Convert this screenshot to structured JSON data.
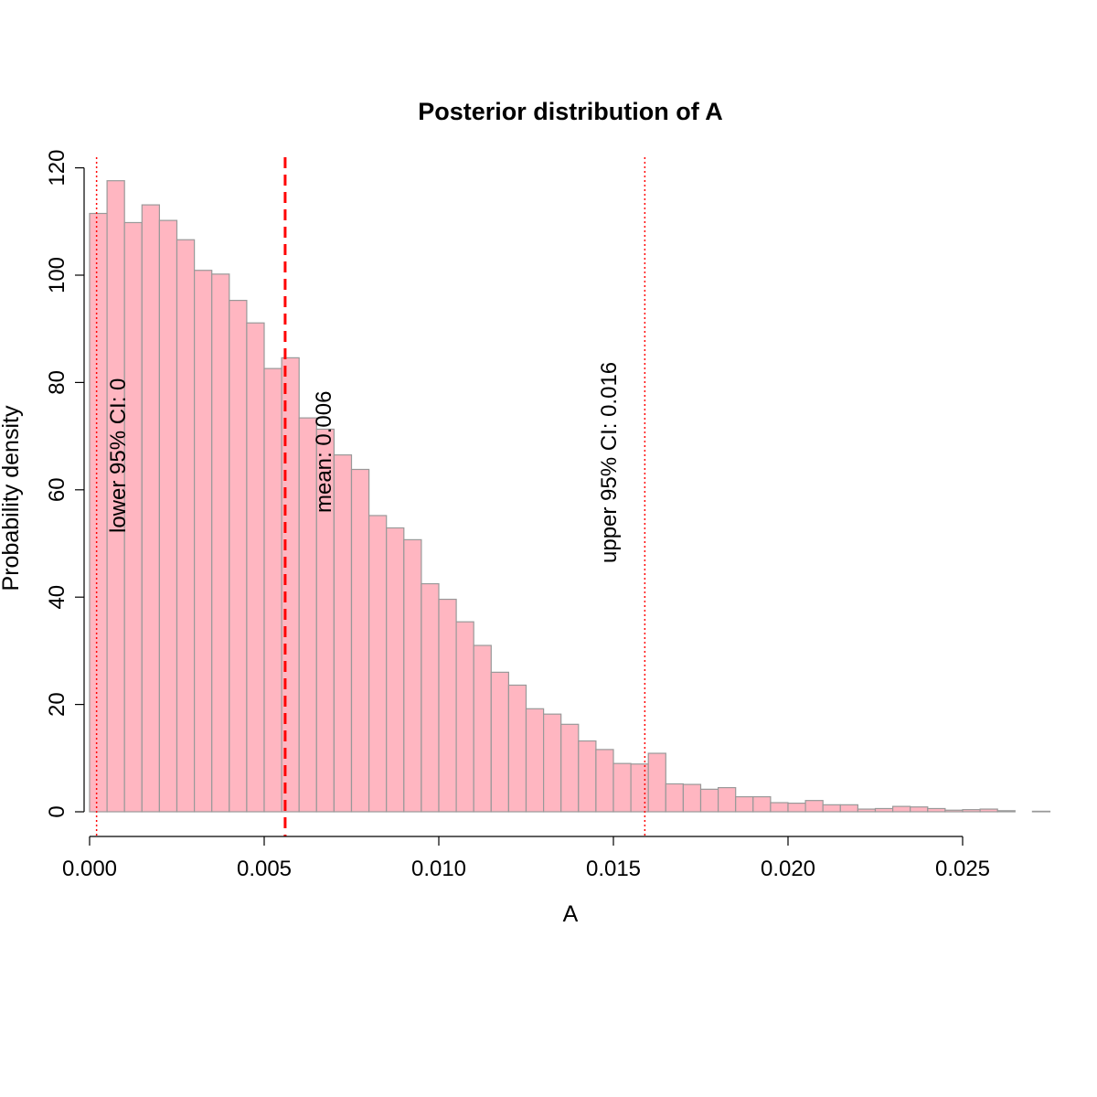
{
  "chart_data": {
    "type": "bar",
    "subtype": "histogram",
    "title": "Posterior distribution of A",
    "xlabel": "A",
    "ylabel": "Probability density",
    "xlim": [
      0,
      0.0275
    ],
    "ylim": [
      0,
      120
    ],
    "bin_width": 0.0005,
    "bin_start": 0,
    "values": [
      111.5,
      117.6,
      109.8,
      113.1,
      110.2,
      106.6,
      100.9,
      100.2,
      95.3,
      91.1,
      82.6,
      84.6,
      73.4,
      71.3,
      66.5,
      63.8,
      55.2,
      52.9,
      50.7,
      42.5,
      39.6,
      35.4,
      31.0,
      26.0,
      23.6,
      19.2,
      18.2,
      16.3,
      13.2,
      11.6,
      9.0,
      8.9,
      10.9,
      5.2,
      5.1,
      4.2,
      4.5,
      2.8,
      2.8,
      1.7,
      1.6,
      2.1,
      1.3,
      1.3,
      0.5,
      0.6,
      1.0,
      0.9,
      0.6,
      0.3,
      0.4,
      0.5,
      0.2,
      0.0,
      0.1
    ],
    "bar_fill": "#ffb6c1",
    "bar_stroke": "#999999",
    "x_ticks": [
      0,
      0.005,
      0.01,
      0.015,
      0.02,
      0.025
    ],
    "x_tick_labels": [
      "0.000",
      "0.005",
      "0.010",
      "0.015",
      "0.020",
      "0.025"
    ],
    "y_ticks": [
      0,
      20,
      40,
      60,
      80,
      100,
      120
    ],
    "y_tick_labels": [
      "0",
      "20",
      "40",
      "60",
      "80",
      "100",
      "120"
    ],
    "grid": false,
    "reference_lines": [
      {
        "name": "lower-ci",
        "x": 0.0002,
        "style": "dotted",
        "color": "#ff0000",
        "label": "lower 95% CI:  0"
      },
      {
        "name": "mean",
        "x": 0.0056,
        "style": "dashed",
        "color": "#ff0000",
        "label": "mean: 0.006"
      },
      {
        "name": "upper-ci",
        "x": 0.0159,
        "style": "dotted",
        "color": "#ff0000",
        "label": "upper 95% CI:  0.016"
      }
    ]
  }
}
